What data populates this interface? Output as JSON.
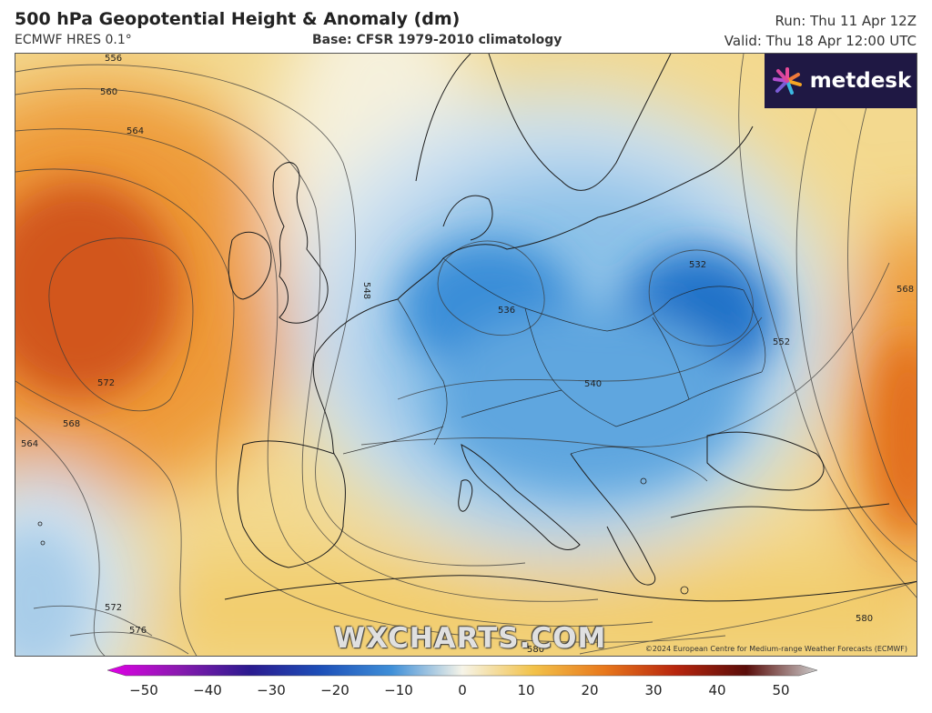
{
  "header": {
    "title": "500 hPa Geopotential Height & Anomaly (dm)",
    "model": "ECMWF HRES 0.1°",
    "base": "Base: CFSR 1979-2010 climatology",
    "run": "Run: Thu 11 Apr 12Z",
    "valid": "Valid: Thu 18 Apr 12:00 UTC"
  },
  "logo": {
    "text": "metdesk",
    "icon": "sparkle-icon"
  },
  "watermark": "WXCHARTS.COM",
  "copyright": "©2024 European Centre for Medium-range Weather Forecasts (ECMWF)",
  "contour_labels": [
    "556",
    "560",
    "564",
    "572",
    "568",
    "564",
    "548",
    "536",
    "532",
    "552",
    "540",
    "568",
    "572",
    "576",
    "580",
    "580"
  ],
  "colorbar": {
    "ticks": [
      "−50",
      "−40",
      "−30",
      "−20",
      "−10",
      "0",
      "10",
      "20",
      "30",
      "40",
      "50"
    ],
    "colors": [
      "#e100e6",
      "#8a1ab0",
      "#2b1a8f",
      "#1d4fb8",
      "#3f8fd8",
      "#cfe3f3",
      "#f7f0c8",
      "#f2c24a",
      "#e8781c",
      "#b8260e",
      "#5a0d0a",
      "#cccccc"
    ]
  },
  "colors": {
    "warm_high": "#d2561a",
    "warm_mid": "#ee9a38",
    "warm_low": "#f2d27e",
    "neutral": "#f6f1dc",
    "cold_low": "#cfe2f1",
    "cold_mid": "#6fb0e2",
    "cold_high": "#1e6fc6",
    "coast": "#222222"
  }
}
